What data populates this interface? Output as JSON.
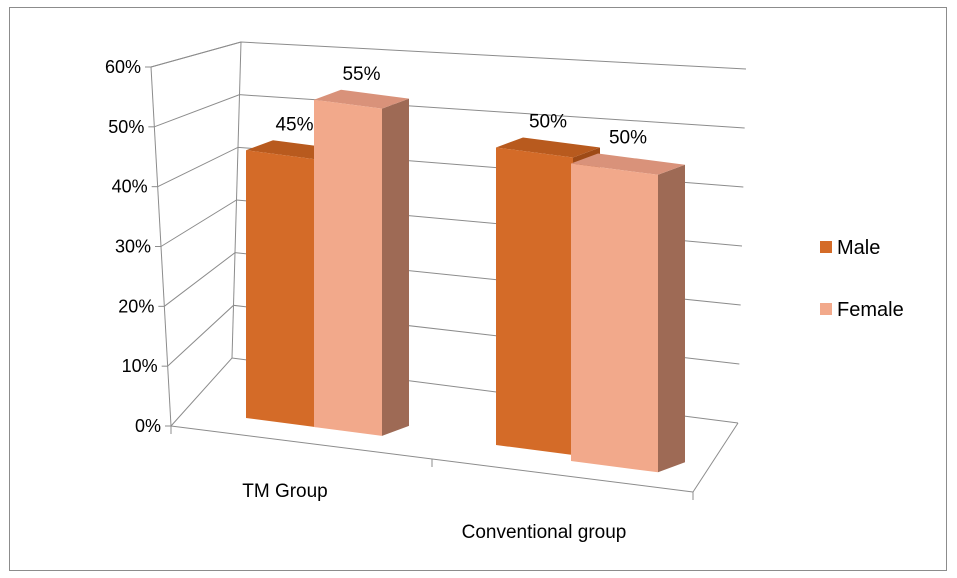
{
  "chart_data": {
    "type": "bar",
    "style": "3d-clustered-column",
    "categories": [
      "TM Group",
      "Conventional group"
    ],
    "series": [
      {
        "name": "Male",
        "values": [
          45,
          50
        ],
        "color": "#D46B28",
        "side_color": "#9E4A16",
        "top_color": "#B85A1E"
      },
      {
        "name": "Female",
        "values": [
          55,
          50
        ],
        "color": "#F2A98B",
        "side_color": "#9E6A55",
        "top_color": "#D9927A"
      }
    ],
    "data_labels": [
      [
        "45%",
        "50%"
      ],
      [
        "55%",
        "50%"
      ]
    ],
    "y_ticks": [
      "0%",
      "10%",
      "20%",
      "30%",
      "40%",
      "50%",
      "60%"
    ],
    "ylim": [
      0,
      60
    ],
    "grid": true,
    "legend_position": "right",
    "title": "",
    "xlabel": "",
    "ylabel": ""
  }
}
